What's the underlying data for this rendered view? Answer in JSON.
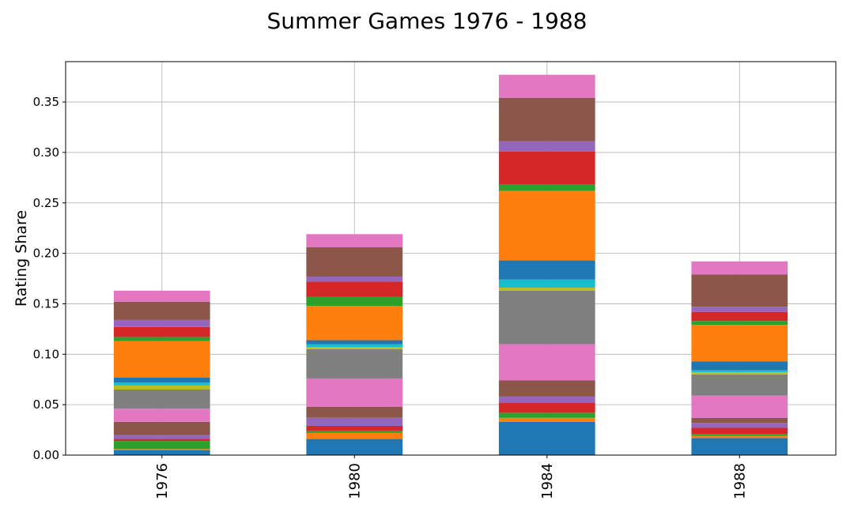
{
  "chart_data": {
    "type": "bar",
    "stacked": true,
    "title": "Summer Games 1976 - 1988",
    "xlabel": "",
    "ylabel": "Rating Share",
    "categories": [
      "1976",
      "1980",
      "1984",
      "1988"
    ],
    "ylim": [
      0,
      0.39
    ],
    "yticks": [
      0.0,
      0.05,
      0.1,
      0.15,
      0.2,
      0.25,
      0.3,
      0.35
    ],
    "ytick_labels": [
      "0.00",
      "0.05",
      "0.10",
      "0.15",
      "0.20",
      "0.25",
      "0.30",
      "0.35"
    ],
    "grid": true,
    "legend": "none",
    "series": [
      {
        "color": "#1f77b4",
        "values": [
          0.005,
          0.016,
          0.033,
          0.017
        ]
      },
      {
        "color": "#ff7f0e",
        "values": [
          0.001,
          0.006,
          0.004,
          0.002
        ]
      },
      {
        "color": "#2ca02c",
        "values": [
          0.008,
          0.002,
          0.005,
          0.002
        ]
      },
      {
        "color": "#d62728",
        "values": [
          0.002,
          0.005,
          0.01,
          0.006
        ]
      },
      {
        "color": "#9467bd",
        "values": [
          0.004,
          0.008,
          0.006,
          0.005
        ]
      },
      {
        "color": "#8c564b",
        "values": [
          0.013,
          0.011,
          0.016,
          0.005
        ]
      },
      {
        "color": "#e377c2",
        "values": [
          0.013,
          0.028,
          0.036,
          0.022
        ]
      },
      {
        "color": "#7f7f7f",
        "values": [
          0.019,
          0.029,
          0.053,
          0.021
        ]
      },
      {
        "color": "#bcbd22",
        "values": [
          0.004,
          0.002,
          0.003,
          0.002
        ]
      },
      {
        "color": "#17becf",
        "values": [
          0.003,
          0.003,
          0.008,
          0.002
        ]
      },
      {
        "color": "#1f77b4",
        "values": [
          0.005,
          0.004,
          0.019,
          0.009
        ]
      },
      {
        "color": "#ff7f0e",
        "values": [
          0.036,
          0.034,
          0.069,
          0.036
        ]
      },
      {
        "color": "#2ca02c",
        "values": [
          0.004,
          0.009,
          0.006,
          0.004
        ]
      },
      {
        "color": "#d62728",
        "values": [
          0.01,
          0.015,
          0.033,
          0.009
        ]
      },
      {
        "color": "#9467bd",
        "values": [
          0.007,
          0.005,
          0.01,
          0.005
        ]
      },
      {
        "color": "#8c564b",
        "values": [
          0.018,
          0.029,
          0.043,
          0.032
        ]
      },
      {
        "color": "#e377c2",
        "values": [
          0.011,
          0.013,
          0.023,
          0.013
        ]
      }
    ]
  }
}
